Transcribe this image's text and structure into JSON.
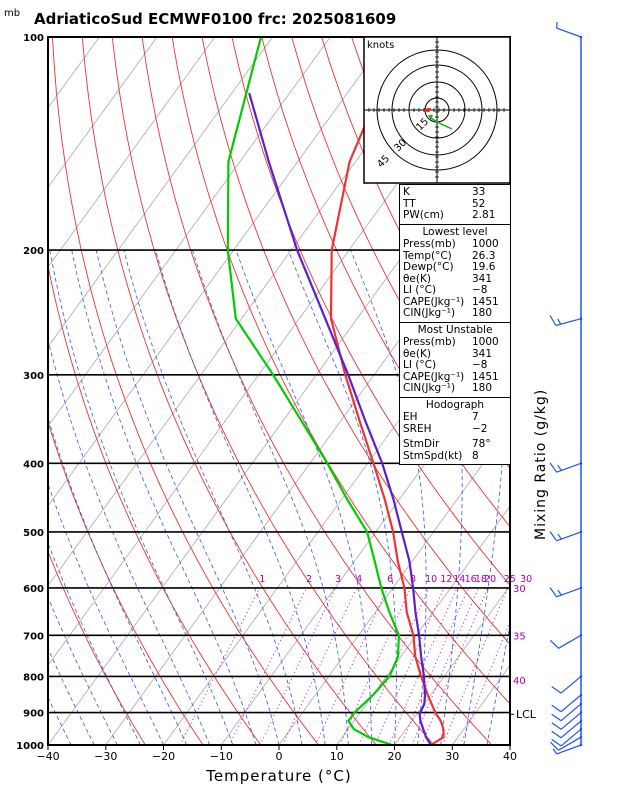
{
  "title": "AdriaticoSud ECMWF0100 frc: 2025081609",
  "p_unit": "mb",
  "hodograph": {
    "units": "knots",
    "ring_labels": [
      "15",
      "30",
      "45"
    ],
    "line_color": "#00bb00",
    "storm_color": "#ee2222"
  },
  "panel": {
    "indices": [
      {
        "label": "K",
        "value": "33"
      },
      {
        "label": "TT",
        "value": "52"
      },
      {
        "label": "PW(cm)",
        "value": "2.81"
      }
    ],
    "lowest": {
      "title": "Lowest level",
      "rows": [
        {
          "label": "Press(mb)",
          "value": "1000"
        },
        {
          "label": "Temp(°C)",
          "value": "26.3"
        },
        {
          "label": "Dewp(°C)",
          "value": "19.6"
        },
        {
          "label": "θe(K)",
          "value": "341"
        },
        {
          "label": "LI (°C)",
          "value": "−8"
        },
        {
          "label": "CAPE(Jkg⁻¹)",
          "value": "1451"
        },
        {
          "label": "CIN(Jkg⁻¹)",
          "value": "180"
        }
      ]
    },
    "unstable": {
      "title": "Most Unstable",
      "rows": [
        {
          "label": "Press(mb)",
          "value": "1000"
        },
        {
          "label": "θe(K)",
          "value": "341"
        },
        {
          "label": "LI (°C)",
          "value": "−8"
        },
        {
          "label": "CAPE(Jkg⁻¹)",
          "value": "1451"
        },
        {
          "label": "CIN(Jkg⁻¹)",
          "value": "180"
        }
      ]
    },
    "hodo": {
      "title": "Hodograph",
      "rows": [
        {
          "label": "EH",
          "value": "7"
        },
        {
          "label": "SREH",
          "value": "−2"
        },
        {
          "label": "StmDir",
          "value": "78°"
        },
        {
          "label": "StmSpd(kt)",
          "value": "8"
        }
      ]
    }
  },
  "mixing_ratio_title": "Mixing Ratio (g/kg)",
  "lcl_label": "LCL",
  "chart_data": {
    "type": "line",
    "title": "AdriaticoSud ECMWF0100 frc: 2025081609",
    "xlabel": "Temperature (°C)",
    "ylabel": "mb",
    "xlim": [
      -40,
      40
    ],
    "ylim": [
      1000,
      100
    ],
    "y_scale": "log",
    "x_ticks": [
      "−40",
      "−30",
      "−20",
      "−10",
      "0",
      "10",
      "20",
      "30",
      "40"
    ],
    "x_tick_values": [
      -40,
      -30,
      -20,
      -10,
      0,
      10,
      20,
      30,
      40
    ],
    "y_ticks": [
      100,
      200,
      300,
      400,
      500,
      600,
      700,
      800,
      900,
      1000
    ],
    "isotherm_color": "#aaaaaa",
    "dry_adiabat_color": "#ee3333",
    "moist_adiabat_color": "#3355ee",
    "mixing_ratio_color": "#aa00aa",
    "mixing_ratio_labels": [
      "1",
      "2",
      "3",
      "4",
      "6",
      "8",
      "10",
      "12",
      "14",
      "16",
      "18",
      "20",
      "25",
      "30"
    ],
    "mixing_ratio_values": [
      1,
      2,
      3,
      4,
      6,
      8,
      10,
      12,
      14,
      16,
      18,
      20,
      25,
      30
    ],
    "theta_e_labels": [
      {
        "text": "30",
        "p": 600
      },
      {
        "text": "35",
        "p": 700
      },
      {
        "text": "40",
        "p": 810
      }
    ],
    "lcl_p": 905,
    "series": [
      {
        "color": "#ee3333",
        "points": [
          [
            1000,
            26.3
          ],
          [
            975,
            27.5
          ],
          [
            950,
            26.5
          ],
          [
            925,
            25.0
          ],
          [
            900,
            23.0
          ],
          [
            850,
            19.5
          ],
          [
            800,
            16.0
          ],
          [
            750,
            12.5
          ],
          [
            700,
            9.5
          ],
          [
            650,
            5.5
          ],
          [
            600,
            2.0
          ],
          [
            550,
            -2.5
          ],
          [
            500,
            -7.0
          ],
          [
            450,
            -12.5
          ],
          [
            400,
            -19.0
          ],
          [
            350,
            -26.5
          ],
          [
            300,
            -35.0
          ],
          [
            250,
            -44.5
          ],
          [
            200,
            -53.0
          ],
          [
            150,
            -61.0
          ],
          [
            100,
            -67.5
          ]
        ]
      },
      {
        "color": "#00cc00",
        "points": [
          [
            1000,
            19.6
          ],
          [
            975,
            14.5
          ],
          [
            950,
            11.0
          ],
          [
            925,
            9.0
          ],
          [
            900,
            9.0
          ],
          [
            850,
            10.0
          ],
          [
            800,
            10.5
          ],
          [
            750,
            9.5
          ],
          [
            700,
            7.0
          ],
          [
            650,
            2.5
          ],
          [
            600,
            -2.0
          ],
          [
            550,
            -6.5
          ],
          [
            500,
            -11.5
          ],
          [
            450,
            -19.0
          ],
          [
            400,
            -27.0
          ],
          [
            350,
            -36.5
          ],
          [
            300,
            -47.5
          ],
          [
            250,
            -61.0
          ],
          [
            200,
            -71.0
          ],
          [
            150,
            -82.0
          ],
          [
            100,
            -92.0
          ]
        ]
      },
      {
        "color": "#5522cc",
        "points": [
          [
            1000,
            26.3
          ],
          [
            975,
            24.5
          ],
          [
            950,
            23.0
          ],
          [
            925,
            21.5
          ],
          [
            905,
            20.5
          ],
          [
            875,
            20.0
          ],
          [
            850,
            19.0
          ],
          [
            800,
            16.5
          ],
          [
            750,
            13.5
          ],
          [
            700,
            10.5
          ],
          [
            650,
            7.0
          ],
          [
            600,
            3.5
          ],
          [
            550,
            -0.5
          ],
          [
            500,
            -5.5
          ],
          [
            450,
            -11.0
          ],
          [
            400,
            -17.5
          ],
          [
            350,
            -25.5
          ],
          [
            300,
            -34.5
          ],
          [
            250,
            -45.5
          ],
          [
            200,
            -59.0
          ],
          [
            150,
            -75.0
          ],
          [
            120,
            -87.0
          ]
        ]
      }
    ],
    "wind_barbs": [
      {
        "p": 1000,
        "dir": 250,
        "spd": 5
      },
      {
        "p": 975,
        "dir": 240,
        "spd": 10
      },
      {
        "p": 950,
        "dir": 230,
        "spd": 10
      },
      {
        "p": 925,
        "dir": 230,
        "spd": 10
      },
      {
        "p": 900,
        "dir": 230,
        "spd": 10
      },
      {
        "p": 875,
        "dir": 230,
        "spd": 10
      },
      {
        "p": 850,
        "dir": 230,
        "spd": 10
      },
      {
        "p": 800,
        "dir": 230,
        "spd": 10
      },
      {
        "p": 700,
        "dir": 240,
        "spd": 10
      },
      {
        "p": 600,
        "dir": 250,
        "spd": 15
      },
      {
        "p": 500,
        "dir": 250,
        "spd": 15
      },
      {
        "p": 400,
        "dir": 250,
        "spd": 15
      },
      {
        "p": 250,
        "dir": 255,
        "spd": 15
      },
      {
        "p": 100,
        "dir": 290,
        "spd": 5
      }
    ]
  }
}
